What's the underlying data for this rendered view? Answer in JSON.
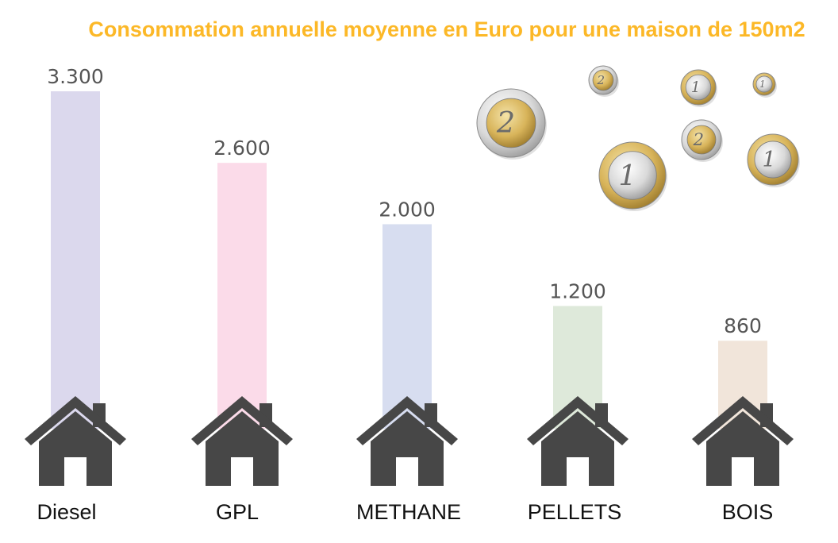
{
  "chart_data": {
    "type": "bar",
    "title": "Consommation annuelle moyenne en Euro pour une maison de 150m2",
    "categories": [
      "Diesel",
      "GPL",
      "METHANE",
      "PELLETS",
      "BOIS"
    ],
    "values": [
      3300,
      2600,
      2000,
      1200,
      860
    ],
    "value_labels": [
      "3.300",
      "2.600",
      "2.000",
      "1.200",
      "860"
    ],
    "bar_colors": [
      "#d9d6ec",
      "#fbd9e8",
      "#d5dbef",
      "#dce8d8",
      "#f0e4d8"
    ],
    "xlabel": "",
    "ylabel": "",
    "ylim": [
      0,
      3300
    ],
    "grid": false,
    "legend": "none",
    "coins": [
      {
        "denomination": "2"
      },
      {
        "denomination": "2"
      },
      {
        "denomination": "1"
      },
      {
        "denomination": "1"
      },
      {
        "denomination": "1"
      },
      {
        "denomination": "2"
      },
      {
        "denomination": "1"
      }
    ]
  },
  "colors": {
    "title": "#fcb827",
    "house": "#474747",
    "coin_gold": "#d8b45a",
    "coin_silver": "#d9d9d9"
  },
  "icons": {
    "house": "house-icon",
    "coin": "euro-coin-icon"
  }
}
